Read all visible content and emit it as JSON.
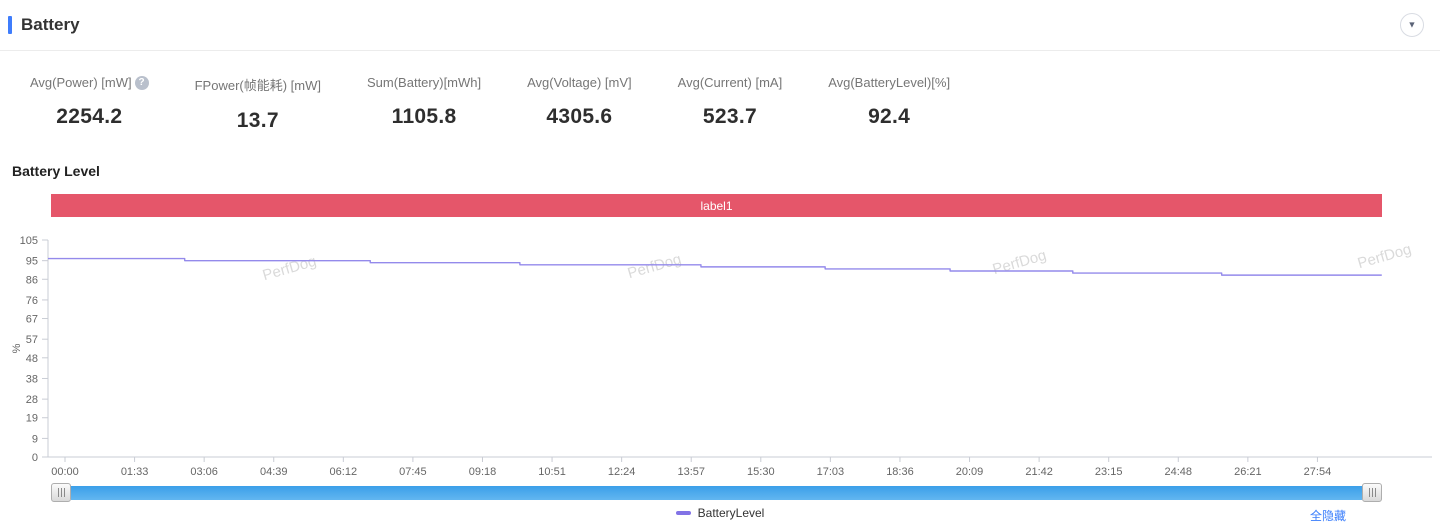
{
  "header": {
    "title": "Battery",
    "collapse_icon": "▼",
    "accent_color": "#3f7dfc"
  },
  "stats": [
    {
      "label": "Avg(Power) [mW]",
      "value": "2254.2",
      "help_icon": "?"
    },
    {
      "label": "FPower(帧能耗) [mW]",
      "value": "13.7"
    },
    {
      "label": "Sum(Battery)[mWh]",
      "value": "1105.8"
    },
    {
      "label": "Avg(Voltage) [mV]",
      "value": "4305.6"
    },
    {
      "label": "Avg(Current) [mA]",
      "value": "523.7"
    },
    {
      "label": "Avg(BatteryLevel)[%]",
      "value": "92.4"
    }
  ],
  "chart": {
    "title": "Battery Level",
    "banner_label": "label1",
    "banner_color": "#e5566a",
    "watermark": "PerfDog",
    "legend": {
      "label": "BatteryLevel",
      "marker_color": "#8273e6"
    },
    "hide_all_label": "全隐藏",
    "scrollbar_color": "#3b9fe9"
  },
  "chart_data": {
    "type": "line",
    "step": true,
    "title": "Battery Level",
    "ylabel": "%",
    "ylim": [
      0,
      105
    ],
    "y_ticks": [
      105,
      95,
      86,
      76,
      67,
      57,
      48,
      38,
      28,
      19,
      9,
      0
    ],
    "x_ticks": [
      "00:00",
      "01:33",
      "03:06",
      "04:39",
      "06:12",
      "07:45",
      "09:18",
      "10:51",
      "12:24",
      "13:57",
      "15:30",
      "17:03",
      "18:36",
      "20:09",
      "21:42",
      "23:15",
      "24:48",
      "26:21",
      "27:54"
    ],
    "x_seconds_per_tick": 93,
    "grid": false,
    "legend_position": "bottom",
    "series": [
      {
        "name": "BatteryLevel",
        "color": "#948aeb",
        "points_time_sec_vs_percent": [
          [
            0,
            96
          ],
          [
            160,
            96
          ],
          [
            160,
            95
          ],
          [
            408,
            95
          ],
          [
            408,
            94
          ],
          [
            608,
            94
          ],
          [
            608,
            93
          ],
          [
            850,
            93
          ],
          [
            850,
            92
          ],
          [
            1016,
            92
          ],
          [
            1016,
            91
          ],
          [
            1183,
            91
          ],
          [
            1183,
            90
          ],
          [
            1347,
            90
          ],
          [
            1347,
            89
          ],
          [
            1546,
            89
          ],
          [
            1546,
            88
          ],
          [
            1760,
            88
          ]
        ]
      }
    ]
  }
}
